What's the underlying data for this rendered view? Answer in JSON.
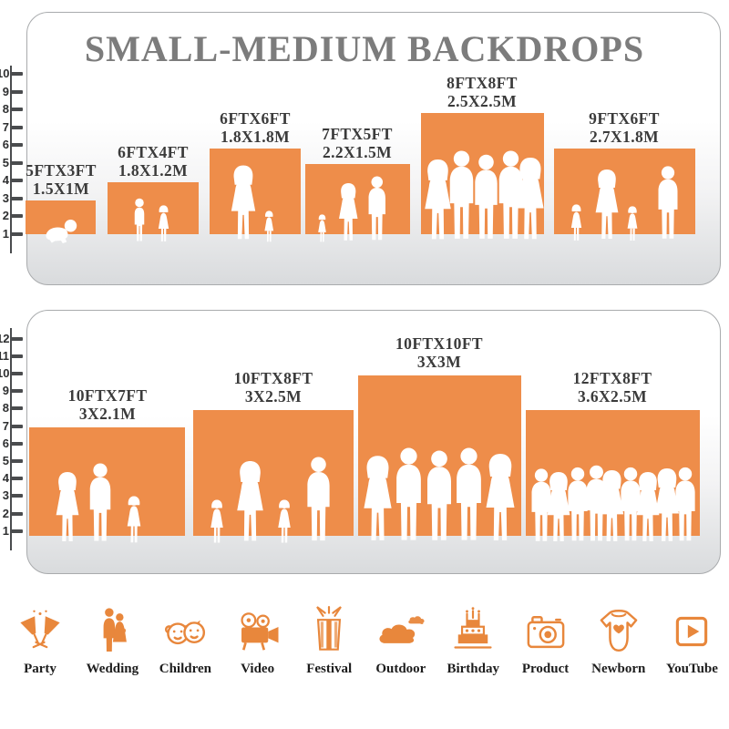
{
  "title": "SMALL-MEDIUM BACKDROPS",
  "colors": {
    "backdrop_orange": "#EE8D4A",
    "icon_orange": "#E8873C",
    "title_gray": "#7c7c7c"
  },
  "top_panel": {
    "ruler_max": 10,
    "boxes": [
      {
        "ft": "5FTX3FT",
        "m": "1.5X1M",
        "figures": "crawling-baby"
      },
      {
        "ft": "6FTX4FT",
        "m": "1.8X1.2M",
        "figures": "boy-and-girl"
      },
      {
        "ft": "6FTX6FT",
        "m": "1.8X1.8M",
        "figures": "mother-with-child-and-girl"
      },
      {
        "ft": "7FTX5FT",
        "m": "2.2X1.5M",
        "figures": "toddler-woman-man"
      },
      {
        "ft": "8FTX8FT",
        "m": "2.5X2.5M",
        "figures": "five-adults-posing"
      },
      {
        "ft": "9FTX6FT",
        "m": "2.7X1.8M",
        "figures": "family-of-four"
      }
    ]
  },
  "bottom_panel": {
    "ruler_max": 12,
    "boxes": [
      {
        "ft": "10FTX7FT",
        "m": "3X2.1M",
        "figures": "family-trio"
      },
      {
        "ft": "10FTX8FT",
        "m": "3X2.5M",
        "figures": "family-of-four"
      },
      {
        "ft": "10FTX10FT",
        "m": "3X3M",
        "figures": "five-adults-posing"
      },
      {
        "ft": "12FTX8FT",
        "m": "3.6X2.5M",
        "figures": "crowd-of-nine"
      }
    ]
  },
  "categories": [
    {
      "label": "Party",
      "icon": "party-icon"
    },
    {
      "label": "Wedding",
      "icon": "wedding-icon"
    },
    {
      "label": "Children",
      "icon": "children-icon"
    },
    {
      "label": "Video",
      "icon": "video-icon"
    },
    {
      "label": "Festival",
      "icon": "festival-icon"
    },
    {
      "label": "Outdoor",
      "icon": "outdoor-icon"
    },
    {
      "label": "Birthday",
      "icon": "birthday-icon"
    },
    {
      "label": "Product",
      "icon": "product-icon"
    },
    {
      "label": "Newborn",
      "icon": "newborn-icon"
    },
    {
      "label": "YouTube",
      "icon": "youtube-icon"
    }
  ]
}
